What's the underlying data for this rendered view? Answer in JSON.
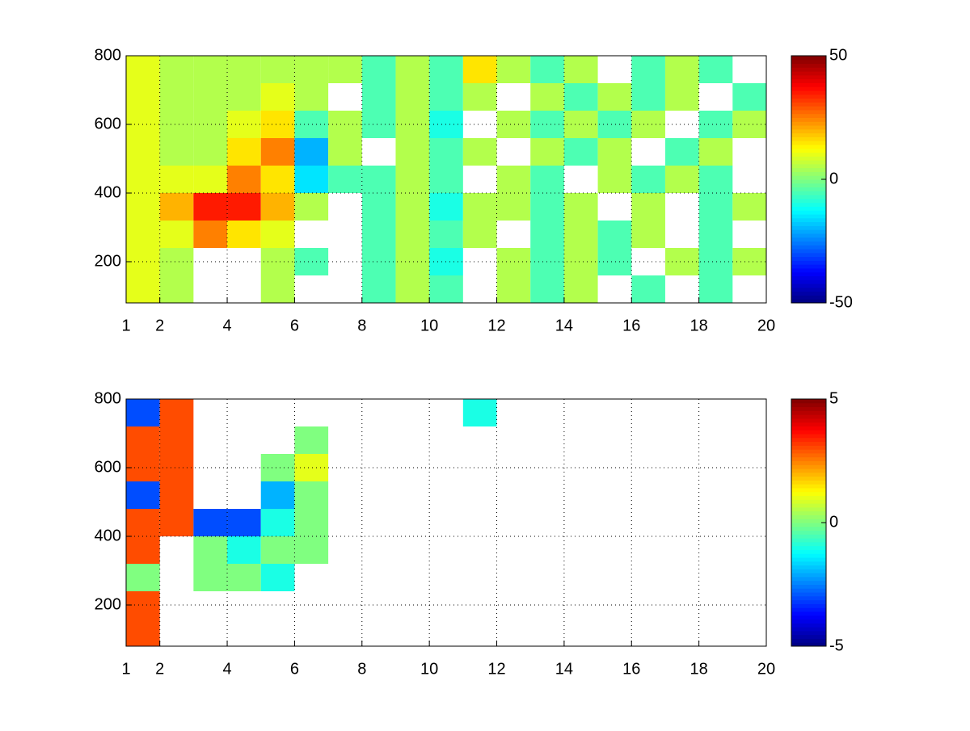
{
  "chart_data": [
    {
      "type": "heatmap",
      "colormap": "jet",
      "grid": true,
      "x_edges": [
        1,
        2,
        3,
        4,
        5,
        6,
        7,
        8,
        9,
        10,
        11,
        12,
        13,
        14,
        15,
        16,
        17,
        18,
        19,
        20
      ],
      "y_edges": [
        80,
        160,
        240,
        320,
        400,
        480,
        560,
        640,
        720,
        800
      ],
      "values": [
        [
          10,
          5,
          null,
          null,
          5,
          null,
          null,
          -5,
          5,
          -5,
          null,
          5,
          -5,
          5,
          null,
          -5,
          null,
          -5,
          null
        ],
        [
          10,
          5,
          null,
          null,
          5,
          -5,
          null,
          -5,
          5,
          -10,
          null,
          5,
          -5,
          5,
          -5,
          null,
          5,
          -5,
          5
        ],
        [
          10,
          10,
          25,
          15,
          10,
          null,
          null,
          -5,
          5,
          -5,
          5,
          null,
          -5,
          5,
          -5,
          5,
          null,
          -5,
          null
        ],
        [
          10,
          20,
          35,
          35,
          20,
          5,
          null,
          -5,
          5,
          -10,
          5,
          5,
          -5,
          5,
          null,
          5,
          null,
          -5,
          5
        ],
        [
          10,
          10,
          10,
          25,
          15,
          -15,
          -5,
          -5,
          5,
          -5,
          null,
          5,
          -5,
          null,
          5,
          -5,
          5,
          -5,
          null
        ],
        [
          10,
          5,
          5,
          15,
          25,
          -20,
          5,
          null,
          5,
          -5,
          5,
          null,
          5,
          -5,
          5,
          null,
          -5,
          5,
          null
        ],
        [
          10,
          5,
          5,
          10,
          15,
          -5,
          5,
          -5,
          5,
          -10,
          null,
          5,
          -5,
          5,
          -5,
          5,
          null,
          -5,
          5
        ],
        [
          10,
          5,
          5,
          5,
          10,
          5,
          null,
          -5,
          5,
          -5,
          5,
          null,
          5,
          -5,
          5,
          -5,
          5,
          null,
          -5
        ],
        [
          10,
          5,
          5,
          5,
          5,
          5,
          5,
          -5,
          5,
          -5,
          15,
          5,
          -5,
          5,
          null,
          -5,
          5,
          -5,
          null
        ]
      ],
      "xlim": [
        1,
        20
      ],
      "xticks": [
        1,
        2,
        4,
        6,
        8,
        10,
        12,
        14,
        16,
        18,
        20
      ],
      "ylim": [
        80,
        800
      ],
      "yticks": [
        200,
        400,
        600,
        800
      ],
      "clim": [
        -50,
        50
      ],
      "cticks": [
        -50,
        0,
        50
      ]
    },
    {
      "type": "heatmap",
      "colormap": "jet",
      "grid": true,
      "x_edges": [
        1,
        2,
        3,
        4,
        5,
        6,
        7,
        8,
        9,
        10,
        11,
        12,
        13,
        14,
        15,
        16,
        17,
        18,
        19,
        20
      ],
      "y_edges": [
        80,
        160,
        240,
        320,
        400,
        480,
        560,
        640,
        720,
        800
      ],
      "values": [
        [
          3,
          null,
          null,
          null,
          null,
          null,
          null,
          null,
          null,
          null,
          null,
          null,
          null,
          null,
          null,
          null,
          null,
          null,
          null
        ],
        [
          3,
          null,
          null,
          null,
          null,
          null,
          null,
          null,
          null,
          null,
          null,
          null,
          null,
          null,
          null,
          null,
          null,
          null,
          null
        ],
        [
          0,
          null,
          0,
          0,
          -1,
          null,
          null,
          null,
          null,
          null,
          null,
          null,
          null,
          null,
          null,
          null,
          null,
          null,
          null
        ],
        [
          3,
          null,
          0,
          -1,
          0,
          0,
          null,
          null,
          null,
          null,
          null,
          null,
          null,
          null,
          null,
          null,
          null,
          null,
          null
        ],
        [
          3,
          3,
          -3,
          -3,
          -1,
          0,
          null,
          null,
          null,
          null,
          null,
          null,
          null,
          null,
          null,
          null,
          null,
          null,
          null
        ],
        [
          -3,
          3,
          null,
          null,
          -2,
          0,
          null,
          null,
          null,
          null,
          null,
          null,
          null,
          null,
          null,
          null,
          null,
          null,
          null
        ],
        [
          3,
          3,
          null,
          null,
          0,
          1,
          null,
          null,
          null,
          null,
          null,
          null,
          null,
          null,
          null,
          null,
          null,
          null,
          null
        ],
        [
          3,
          3,
          null,
          null,
          null,
          0,
          null,
          null,
          null,
          null,
          null,
          null,
          null,
          null,
          null,
          null,
          null,
          null,
          null
        ],
        [
          -3,
          3,
          null,
          null,
          null,
          null,
          null,
          null,
          null,
          null,
          -1,
          null,
          null,
          null,
          null,
          null,
          null,
          null,
          null
        ]
      ],
      "xlim": [
        1,
        20
      ],
      "xticks": [
        1,
        2,
        4,
        6,
        8,
        10,
        12,
        14,
        16,
        18,
        20
      ],
      "ylim": [
        80,
        800
      ],
      "yticks": [
        200,
        400,
        600,
        800
      ],
      "clim": [
        -5,
        5
      ],
      "cticks": [
        -5,
        0,
        5
      ]
    }
  ]
}
